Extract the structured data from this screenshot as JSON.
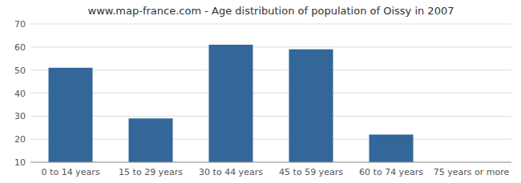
{
  "chart_data": {
    "type": "bar",
    "title": "www.map-france.com - Age distribution of population of Oissy in 2007",
    "categories": [
      "0 to 14 years",
      "15 to 29 years",
      "30 to 44 years",
      "45 to 59 years",
      "60 to 74 years",
      "75 years or more"
    ],
    "values": [
      51,
      29,
      61,
      59,
      22,
      10
    ],
    "color": "#336699",
    "ylim": [
      10,
      70
    ],
    "yticks": [
      10,
      20,
      30,
      40,
      50,
      60,
      70
    ],
    "grid": true
  }
}
